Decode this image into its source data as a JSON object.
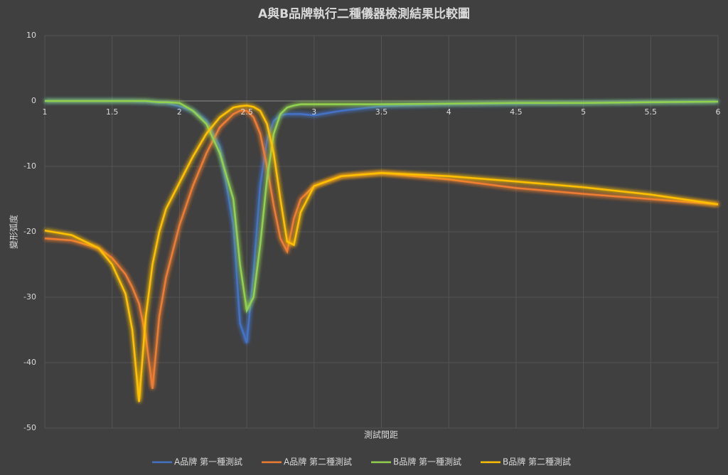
{
  "chart_data": {
    "type": "line",
    "title": "A與B品牌執行二種儀器檢測結果比較圖",
    "x_label": "測試間距",
    "y_label": "變形弧度",
    "x": [
      1,
      1.2,
      1.4,
      1.5,
      1.6,
      1.65,
      1.7,
      1.75,
      1.8,
      1.85,
      1.9,
      2.0,
      2.1,
      2.2,
      2.3,
      2.4,
      2.45,
      2.5,
      2.55,
      2.6,
      2.65,
      2.7,
      2.75,
      2.8,
      2.85,
      2.9,
      3.0,
      3.2,
      3.5,
      4.0,
      4.5,
      5.0,
      5.5,
      6.0
    ],
    "series": [
      {
        "name": "A品牌 第一種測試",
        "color": "#4472c4",
        "values": [
          0,
          0,
          0,
          0,
          0,
          0,
          -0.1,
          -0.1,
          -0.2,
          -0.3,
          -0.3,
          -0.8,
          -1.5,
          -3,
          -7,
          -19,
          -34,
          -37,
          -26,
          -13,
          -6,
          -3,
          -2.2,
          -2,
          -2,
          -2,
          -2.2,
          -1.5,
          -0.8,
          -0.5,
          -0.4,
          -0.3,
          -0.2,
          -0.1
        ]
      },
      {
        "name": "A品牌 第二種測試",
        "color": "#ed7d31",
        "values": [
          -21,
          -21.3,
          -22.5,
          -24,
          -26.5,
          -28.5,
          -31,
          -36,
          -44,
          -33,
          -27,
          -19,
          -13,
          -8,
          -4,
          -2,
          -1.5,
          -1.5,
          -2.5,
          -5,
          -10,
          -16,
          -21,
          -23,
          -18,
          -15,
          -13,
          -11.5,
          -11,
          -12,
          -13.3,
          -14.2,
          -15,
          -15.8
        ]
      },
      {
        "name": "B品牌 第一種測試",
        "color": "#92d050",
        "values": [
          0,
          0,
          0,
          0,
          0,
          0,
          0,
          0,
          -0.1,
          -0.2,
          -0.2,
          -0.3,
          -1.5,
          -3.5,
          -8,
          -15,
          -25,
          -32,
          -30,
          -22,
          -12,
          -5,
          -2,
          -1,
          -0.7,
          -0.5,
          -0.5,
          -0.5,
          -0.5,
          -0.4,
          -0.3,
          -0.3,
          -0.2,
          -0.1
        ]
      },
      {
        "name": "B品牌 第二種測試",
        "color": "#ffc000",
        "values": [
          -19.8,
          -20.5,
          -22.5,
          -25,
          -29.5,
          -35,
          -46,
          -33,
          -25,
          -20,
          -16.5,
          -12.5,
          -8.5,
          -5,
          -2.5,
          -1,
          -0.8,
          -0.7,
          -0.9,
          -1.5,
          -3.5,
          -8,
          -15,
          -21.5,
          -22,
          -17,
          -13,
          -11.5,
          -11,
          -11.5,
          -12.3,
          -13.2,
          -14.3,
          -15.8
        ]
      }
    ],
    "xlim": [
      1,
      6
    ],
    "xticks": [
      1,
      1.5,
      2,
      2.5,
      3,
      3.5,
      4,
      4.5,
      5,
      5.5,
      6
    ],
    "ylim": [
      -50,
      10
    ],
    "yticks": [
      10,
      0,
      -10,
      -20,
      -30,
      -40,
      -50
    ],
    "grid": true,
    "legend": "bottom"
  }
}
